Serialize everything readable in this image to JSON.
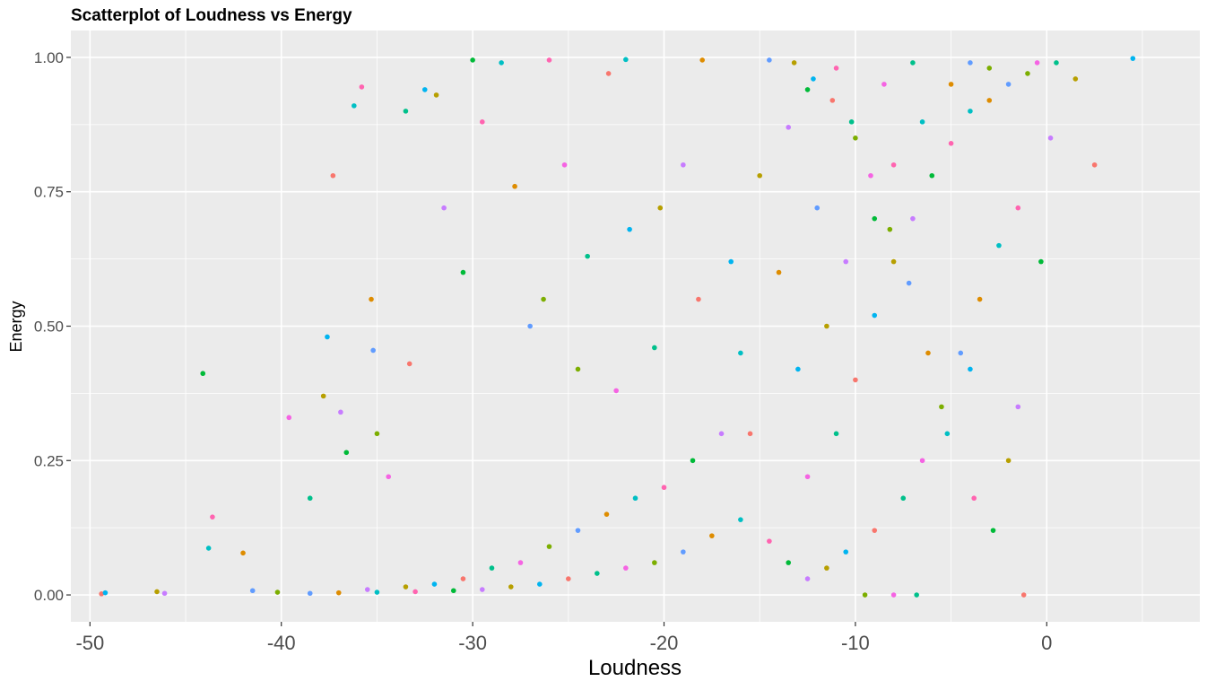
{
  "chart_data": {
    "type": "scatter",
    "title": "Scatterplot of Loudness vs Energy",
    "xlabel": "Loudness",
    "ylabel": "Energy",
    "xlim": [
      -51,
      8
    ],
    "ylim": [
      -0.05,
      1.05
    ],
    "x_ticks": [
      -50,
      -40,
      -30,
      -20,
      -10,
      0
    ],
    "x_tick_labels": [
      "-50",
      "-40",
      "-30",
      "-20",
      "-10",
      "0"
    ],
    "y_ticks": [
      0,
      0.25,
      0.5,
      0.75,
      1
    ],
    "y_tick_labels": [
      "0.00",
      "0.25",
      "0.50",
      "0.75",
      "1.00"
    ],
    "grid": true,
    "legend": "none",
    "background_color": "#ebebeb",
    "grid_color": "#ffffff",
    "series_colors": [
      "#f8766d",
      "#de8c00",
      "#b79f00",
      "#7cae00",
      "#00ba38",
      "#00c08b",
      "#00bfc4",
      "#00b4f0",
      "#619cff",
      "#c77cff",
      "#f564e3",
      "#ff64b0"
    ],
    "points": [
      [
        -49.4,
        0.002
      ],
      [
        -49.2,
        0.004
      ],
      [
        -46.5,
        0.006
      ],
      [
        -46.1,
        0.003
      ],
      [
        -44.1,
        0.412
      ],
      [
        -43.6,
        0.145
      ],
      [
        -43.8,
        0.087
      ],
      [
        -42.0,
        0.078
      ],
      [
        -41.5,
        0.008
      ],
      [
        -40.2,
        0.005
      ],
      [
        -39.6,
        0.33
      ],
      [
        -38.5,
        0.18
      ],
      [
        -37.3,
        0.78
      ],
      [
        -37.6,
        0.48
      ],
      [
        -37.8,
        0.37
      ],
      [
        -36.9,
        0.34
      ],
      [
        -36.6,
        0.265
      ],
      [
        -35.8,
        0.945
      ],
      [
        -36.2,
        0.91
      ],
      [
        -35.3,
        0.55
      ],
      [
        -35.2,
        0.455
      ],
      [
        -35.0,
        0.3
      ],
      [
        -34.4,
        0.22
      ],
      [
        -33.5,
        0.9
      ],
      [
        -33.3,
        0.43
      ],
      [
        -32.5,
        0.94
      ],
      [
        -31.9,
        0.93
      ],
      [
        -31.5,
        0.72
      ],
      [
        -30.5,
        0.6
      ],
      [
        -29.5,
        0.88
      ],
      [
        -28.5,
        0.99
      ],
      [
        -27.8,
        0.76
      ],
      [
        -27.0,
        0.5
      ],
      [
        -26.3,
        0.55
      ],
      [
        -25.2,
        0.8
      ],
      [
        -24.0,
        0.63
      ],
      [
        -22.9,
        0.97
      ],
      [
        -21.8,
        0.68
      ],
      [
        -20.2,
        0.72
      ],
      [
        -19.0,
        0.8
      ],
      [
        -30.0,
        0.995
      ],
      [
        -26.0,
        0.995
      ],
      [
        -22.0,
        0.996
      ],
      [
        -18.0,
        0.995
      ],
      [
        -14.5,
        0.995
      ],
      [
        -24.5,
        0.42
      ],
      [
        -22.5,
        0.38
      ],
      [
        -20.5,
        0.46
      ],
      [
        -18.2,
        0.55
      ],
      [
        -16.5,
        0.62
      ],
      [
        -15.0,
        0.78
      ],
      [
        -13.5,
        0.87
      ],
      [
        -12.5,
        0.94
      ],
      [
        -11.0,
        0.98
      ],
      [
        -16.0,
        0.45
      ],
      [
        -14.0,
        0.6
      ],
      [
        -12.0,
        0.72
      ],
      [
        -10.0,
        0.85
      ],
      [
        -8.5,
        0.95
      ],
      [
        -7.0,
        0.99
      ],
      [
        -15.5,
        0.3
      ],
      [
        -13.0,
        0.42
      ],
      [
        -11.5,
        0.5
      ],
      [
        -10.5,
        0.62
      ],
      [
        -9.0,
        0.7
      ],
      [
        -8.0,
        0.8
      ],
      [
        -6.5,
        0.88
      ],
      [
        -5.0,
        0.95
      ],
      [
        -4.0,
        0.99
      ],
      [
        -3.0,
        0.98
      ],
      [
        -12.5,
        0.22
      ],
      [
        -11.0,
        0.3
      ],
      [
        -10.0,
        0.4
      ],
      [
        -9.0,
        0.52
      ],
      [
        -8.0,
        0.62
      ],
      [
        -7.0,
        0.7
      ],
      [
        -6.0,
        0.78
      ],
      [
        -5.0,
        0.84
      ],
      [
        -4.0,
        0.9
      ],
      [
        -3.0,
        0.92
      ],
      [
        -2.0,
        0.95
      ],
      [
        -1.0,
        0.97
      ],
      [
        -0.5,
        0.99
      ],
      [
        0.5,
        0.99
      ],
      [
        2.5,
        0.8
      ],
      [
        4.5,
        0.998
      ],
      [
        1.5,
        0.96
      ],
      [
        0.2,
        0.85
      ],
      [
        -0.3,
        0.62
      ],
      [
        -1.5,
        0.72
      ],
      [
        -2.5,
        0.65
      ],
      [
        -3.5,
        0.55
      ],
      [
        -4.5,
        0.45
      ],
      [
        -5.5,
        0.35
      ],
      [
        -6.5,
        0.25
      ],
      [
        -7.5,
        0.18
      ],
      [
        -9.0,
        0.12
      ],
      [
        -10.5,
        0.08
      ],
      [
        -11.5,
        0.05
      ],
      [
        -12.5,
        0.03
      ],
      [
        -13.5,
        0.06
      ],
      [
        -14.5,
        0.1
      ],
      [
        -16.0,
        0.14
      ],
      [
        -17.5,
        0.11
      ],
      [
        -19.0,
        0.08
      ],
      [
        -20.5,
        0.06
      ],
      [
        -22.0,
        0.05
      ],
      [
        -23.5,
        0.04
      ],
      [
        -25.0,
        0.03
      ],
      [
        -26.5,
        0.02
      ],
      [
        -28.0,
        0.015
      ],
      [
        -29.5,
        0.01
      ],
      [
        -31.0,
        0.008
      ],
      [
        -33.0,
        0.006
      ],
      [
        -35.0,
        0.005
      ],
      [
        -37.0,
        0.004
      ],
      [
        -38.5,
        0.003
      ],
      [
        -9.5,
        0.0
      ],
      [
        -8.0,
        0.0
      ],
      [
        -6.8,
        0.0
      ],
      [
        -1.2,
        0.0
      ],
      [
        -4.0,
        0.42
      ],
      [
        -2.0,
        0.25
      ],
      [
        -1.5,
        0.35
      ],
      [
        -2.8,
        0.12
      ],
      [
        -3.8,
        0.18
      ],
      [
        -5.2,
        0.3
      ],
      [
        -6.2,
        0.45
      ],
      [
        -7.2,
        0.58
      ],
      [
        -8.2,
        0.68
      ],
      [
        -9.2,
        0.78
      ],
      [
        -10.2,
        0.88
      ],
      [
        -11.2,
        0.92
      ],
      [
        -12.2,
        0.96
      ],
      [
        -13.2,
        0.99
      ],
      [
        -17.0,
        0.3
      ],
      [
        -18.5,
        0.25
      ],
      [
        -20.0,
        0.2
      ],
      [
        -21.5,
        0.18
      ],
      [
        -23.0,
        0.15
      ],
      [
        -24.5,
        0.12
      ],
      [
        -26.0,
        0.09
      ],
      [
        -27.5,
        0.06
      ],
      [
        -29.0,
        0.05
      ],
      [
        -30.5,
        0.03
      ],
      [
        -32.0,
        0.02
      ],
      [
        -33.5,
        0.015
      ],
      [
        -35.5,
        0.01
      ]
    ]
  }
}
